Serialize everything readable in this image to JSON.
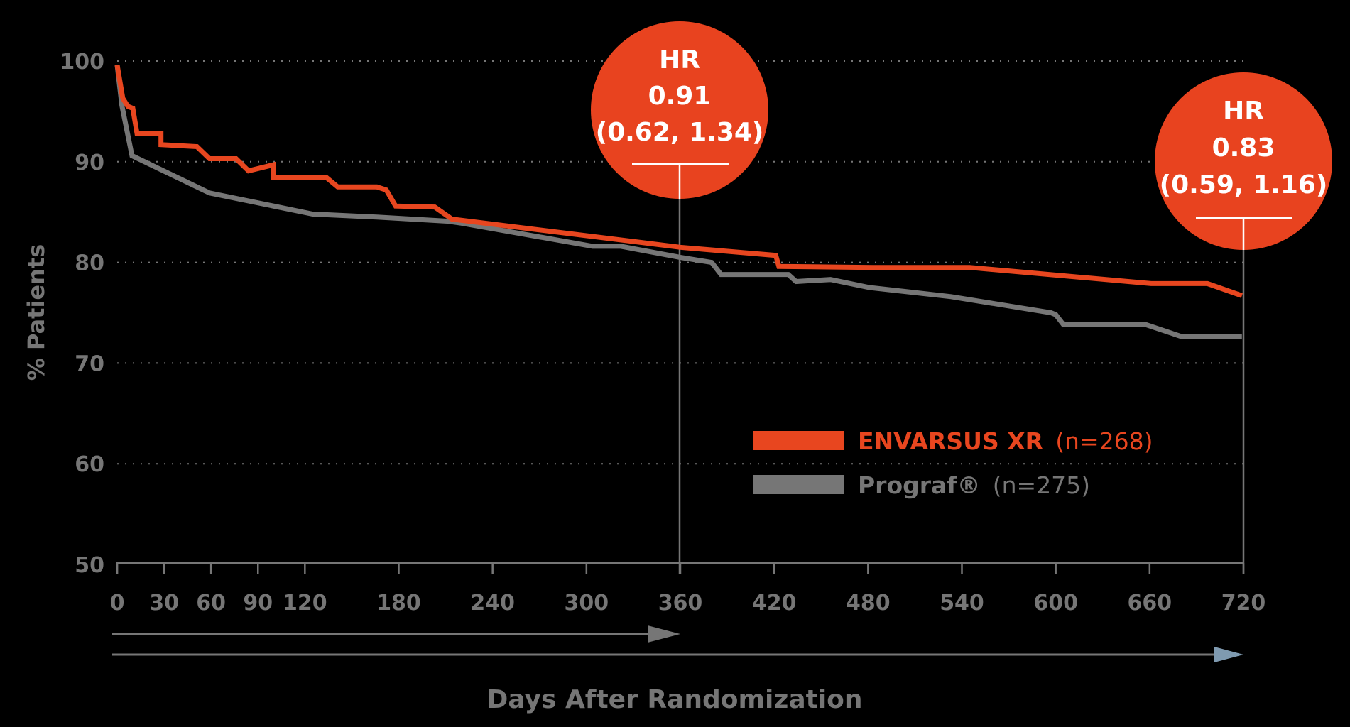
{
  "chart_data": {
    "type": "line",
    "subtype": "kaplan-meier step curve",
    "title": "",
    "xlabel": "Days After Randomization",
    "ylabel": "% Patients",
    "xlim": [
      0,
      720
    ],
    "ylim": [
      50,
      100
    ],
    "x_ticks": [
      0,
      30,
      60,
      90,
      120,
      180,
      240,
      300,
      360,
      420,
      480,
      540,
      600,
      660,
      720
    ],
    "y_ticks": [
      50,
      60,
      70,
      80,
      90,
      100
    ],
    "grid": "horizontal dotted",
    "legend_position": "lower-right inside plot",
    "series": [
      {
        "name": "ENVARSUS XR",
        "n_label": "(n=268)",
        "color": "#e8461f",
        "points": [
          [
            0,
            99.6
          ],
          [
            3.6,
            96.3
          ],
          [
            6.8,
            95.5
          ],
          [
            10,
            95.3
          ],
          [
            12.7,
            92.8
          ],
          [
            28,
            92.8
          ],
          [
            28,
            91.7
          ],
          [
            51,
            91.5
          ],
          [
            59,
            90.3
          ],
          [
            76,
            90.3
          ],
          [
            84,
            89.1
          ],
          [
            100,
            89.7
          ],
          [
            100,
            88.4
          ],
          [
            134,
            88.4
          ],
          [
            141,
            87.5
          ],
          [
            166,
            87.5
          ],
          [
            172,
            87.2
          ],
          [
            178,
            85.6
          ],
          [
            203,
            85.5
          ],
          [
            214,
            84.3
          ],
          [
            360,
            81.5
          ],
          [
            421,
            80.7
          ],
          [
            423,
            79.6
          ],
          [
            483,
            79.5
          ],
          [
            545,
            79.5
          ],
          [
            661,
            77.9
          ],
          [
            697,
            77.9
          ],
          [
            719,
            76.7
          ]
        ]
      },
      {
        "name": "Prograf®",
        "n_label": "(n=275)",
        "color": "#767676",
        "points": [
          [
            0,
            99.6
          ],
          [
            3,
            95.6
          ],
          [
            9.5,
            90.6
          ],
          [
            59,
            86.9
          ],
          [
            125,
            84.8
          ],
          [
            166,
            84.5
          ],
          [
            211,
            84.1
          ],
          [
            220,
            83.9
          ],
          [
            304,
            81.6
          ],
          [
            322,
            81.6
          ],
          [
            360,
            80.5
          ],
          [
            380,
            80
          ],
          [
            386,
            78.8
          ],
          [
            429,
            78.8
          ],
          [
            434,
            78.1
          ],
          [
            456,
            78.3
          ],
          [
            481,
            77.5
          ],
          [
            533,
            76.6
          ],
          [
            597,
            75
          ],
          [
            600,
            74.8
          ],
          [
            605,
            73.8
          ],
          [
            658,
            73.8
          ],
          [
            681,
            72.6
          ],
          [
            719,
            72.6
          ]
        ]
      }
    ],
    "annotations": [
      {
        "day": 360,
        "label": "HR",
        "value": "0.91",
        "ci": "(0.62, 1.34)"
      },
      {
        "day": 720,
        "label": "HR",
        "value": "0.83",
        "ci": "(0.59, 1.16)"
      }
    ],
    "period_arrows": [
      {
        "from": 0,
        "to": 360,
        "color": "#767676"
      },
      {
        "from": 0,
        "to": 720,
        "color": "#7f9ab0"
      }
    ]
  },
  "labels": {
    "y_title": "% Patients",
    "x_title": "Days After Randomization",
    "hr1_line1": "HR",
    "hr1_line2": "0.91",
    "hr1_line3": "(0.62, 1.34)",
    "hr2_line1": "HR",
    "hr2_line2": "0.83",
    "hr2_line3": "(0.59, 1.16)",
    "legend_envarsus_name": "ENVARSUS XR",
    "legend_envarsus_n": "(n=268)",
    "legend_prograf_name": "Prograf®",
    "legend_prograf_n": "(n=275)"
  },
  "colors": {
    "accent": "#e8461f",
    "gray": "#767676",
    "arrow_blue": "#7f9ab0",
    "background": "#000000"
  }
}
